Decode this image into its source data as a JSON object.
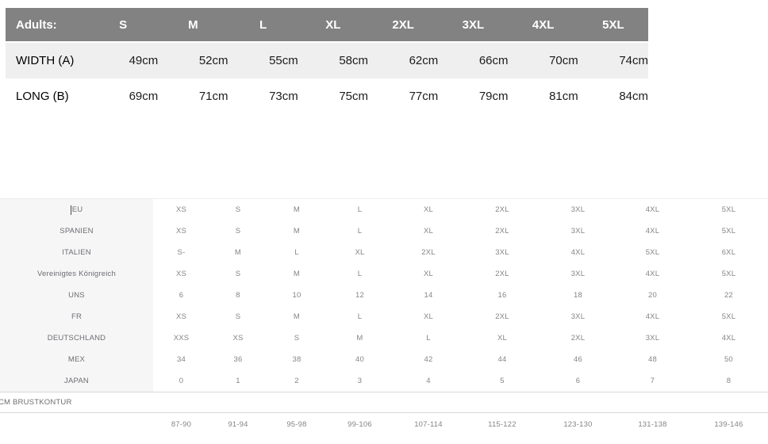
{
  "adults_table": {
    "header": {
      "label": "Adults:",
      "sizes": [
        "S",
        "M",
        "L",
        "XL",
        "2XL",
        "3XL",
        "4XL",
        "5XL"
      ]
    },
    "rows": [
      {
        "label": "WIDTH (A)",
        "values": [
          "49cm",
          "52cm",
          "55cm",
          "58cm",
          "62cm",
          "66cm",
          "70cm",
          "74cm"
        ]
      },
      {
        "label": "LONG (B)",
        "values": [
          "69cm",
          "71cm",
          "73cm",
          "75cm",
          "77cm",
          "79cm",
          "81cm",
          "84cm"
        ]
      }
    ]
  },
  "conversion_table": {
    "rows": [
      {
        "label": "EU",
        "cursor": true,
        "values": [
          "XS",
          "S",
          "M",
          "L",
          "XL",
          "2XL",
          "3XL",
          "4XL",
          "5XL"
        ]
      },
      {
        "label": "SPANIEN",
        "values": [
          "XS",
          "S",
          "M",
          "L",
          "XL",
          "2XL",
          "3XL",
          "4XL",
          "5XL"
        ]
      },
      {
        "label": "ITALIEN",
        "values": [
          "S-",
          "M",
          "L",
          "XL",
          "2XL",
          "3XL",
          "4XL",
          "5XL",
          "6XL"
        ]
      },
      {
        "label": "Vereinigtes Königreich",
        "values": [
          "XS",
          "S",
          "M",
          "L",
          "XL",
          "2XL",
          "3XL",
          "4XL",
          "5XL"
        ]
      },
      {
        "label": "UNS",
        "values": [
          "6",
          "8",
          "10",
          "12",
          "14",
          "16",
          "18",
          "20",
          "22"
        ]
      },
      {
        "label": "FR",
        "values": [
          "XS",
          "S",
          "M",
          "L",
          "XL",
          "2XL",
          "3XL",
          "4XL",
          "5XL"
        ]
      },
      {
        "label": "DEUTSCHLAND",
        "values": [
          "XXS",
          "XS",
          "S",
          "M",
          "L",
          "XL",
          "2XL",
          "3XL",
          "4XL"
        ]
      },
      {
        "label": "MEX",
        "values": [
          "34",
          "36",
          "38",
          "40",
          "42",
          "44",
          "46",
          "48",
          "50"
        ]
      },
      {
        "label": "JAPAN",
        "values": [
          "0",
          "1",
          "2",
          "3",
          "4",
          "5",
          "6",
          "7",
          "8"
        ]
      }
    ],
    "chest_label": "CM BRUSTKONTUR",
    "chest_values": [
      "87-90",
      "91-94",
      "95-98",
      "99-106",
      "107-114",
      "115-122",
      "123-130",
      "131-138",
      "139-146"
    ]
  },
  "colors": {
    "header_gray": "#828282",
    "shaded_row": "#efefef",
    "label_column": "#f6f6f7",
    "border_light": "#d8d8d8",
    "text_dark": "#1c1c1c",
    "text_muted": "#6e6e73",
    "text_muted_light": "#85858a"
  }
}
